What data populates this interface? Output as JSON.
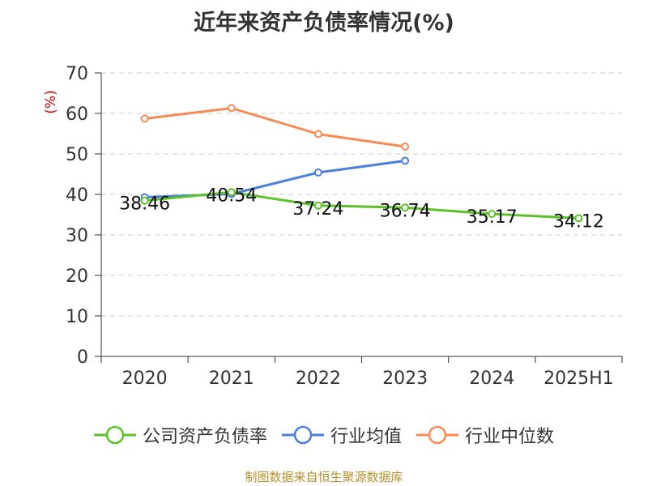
{
  "chart_data": {
    "type": "line",
    "title": "近年来资产负债率情况(%)",
    "ylabel": "(%)",
    "ylim": [
      0,
      70
    ],
    "yticks": [
      "0",
      "10",
      "20",
      "30",
      "40",
      "50",
      "60",
      "70"
    ],
    "categories": [
      "2020",
      "2021",
      "2022",
      "2023",
      "2024",
      "2025H1"
    ],
    "grid": true,
    "legend_position": "bottom",
    "series": [
      {
        "name": "公司资产负债率",
        "color": "#5dc229",
        "values": [
          38.46,
          40.54,
          37.24,
          36.74,
          35.17,
          34.12
        ],
        "labels": [
          "38.46",
          "40.54",
          "37.24",
          "36.74",
          "35.17",
          "34.12"
        ]
      },
      {
        "name": "行业均值",
        "color": "#4a7fdc",
        "values": [
          39.3,
          40.1,
          45.4,
          48.3,
          null,
          null
        ]
      },
      {
        "name": "行业中位数",
        "color": "#f68c55",
        "values": [
          58.7,
          61.3,
          54.9,
          51.8,
          null,
          null
        ]
      }
    ]
  },
  "source_note": "制图数据来自恒生聚源数据库",
  "colors": {
    "ylabel": "#cc0000",
    "axis": "#333333",
    "grid": "#cccccc",
    "source": "#b8902c"
  }
}
